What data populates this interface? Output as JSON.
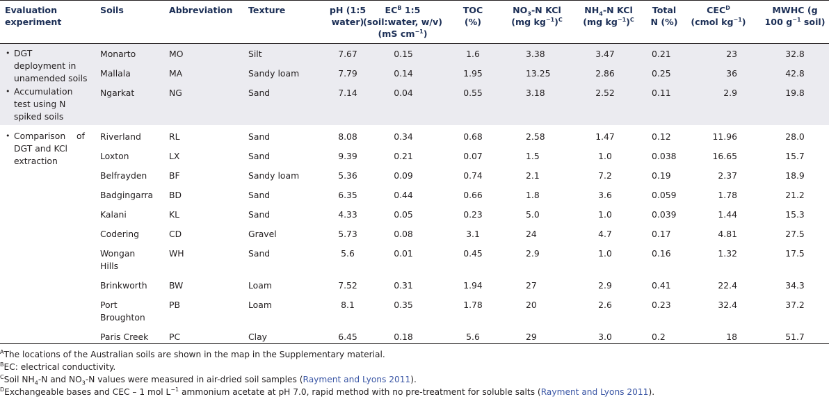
{
  "headers": {
    "eval": [
      "Evaluation",
      "experiment"
    ],
    "soils": "Soils",
    "abbr": "Abbreviation",
    "texture": "Texture",
    "ph": [
      "pH (1:5",
      "water)"
    ],
    "ec": {
      "l1a": "EC",
      "l1sup": "B",
      "l1b": " 1:5",
      "l2": "(soil:water, w/v)",
      "l3a": "(mS cm",
      "l3sup": "−1",
      "l3b": ")"
    },
    "toc": [
      "TOC",
      "(%)"
    ],
    "no3": {
      "l1a": "NO",
      "l1sub": "3",
      "l1b": "-N KCl",
      "l2a": "(mg kg",
      "l2sup": "−1",
      "l2b": ")",
      "l2sup2": "C"
    },
    "nh4": {
      "l1a": "NH",
      "l1sub": "4",
      "l1b": "-N KCl",
      "l2a": "(mg kg",
      "l2sup": "−1",
      "l2b": ")",
      "l2sup2": "C"
    },
    "totaln": [
      "Total",
      "N (%)"
    ],
    "cec": {
      "l1a": "CEC",
      "l1sup": "D",
      "l2a": "(cmol  kg",
      "l2sup": "−1",
      "l2b": ")"
    },
    "mwhc": {
      "l1": "MWHC (g",
      "l2a": "100 g",
      "l2sup": "−1",
      "l2b": " soil)"
    }
  },
  "group1": {
    "bullet": "•",
    "items": [
      [
        "DGT",
        "deployment in",
        "unamended soils"
      ],
      [
        "Accumulation",
        "test using N",
        "spiked soils"
      ]
    ]
  },
  "group2": {
    "bullet": "•",
    "items": [
      [
        "Comparison    of",
        "DGT and KCl",
        "extraction"
      ]
    ]
  },
  "rows": [
    {
      "soil": [
        "Monarto"
      ],
      "abbr": "MO",
      "texture": "Silt",
      "ph": "7.67",
      "ec": "0.15",
      "toc": "1.6",
      "no3": "3.38",
      "nh4": "3.47",
      "totaln": "0.21",
      "cec": "23",
      "mwhc": "32.8"
    },
    {
      "soil": [
        "Mallala"
      ],
      "abbr": "MA",
      "texture": "Sandy loam",
      "ph": "7.79",
      "ec": "0.14",
      "toc": "1.95",
      "no3": "13.25",
      "nh4": "2.86",
      "totaln": "0.25",
      "cec": "36",
      "mwhc": "42.8"
    },
    {
      "soil": [
        "Ngarkat"
      ],
      "abbr": "NG",
      "texture": "Sand",
      "ph": "7.14",
      "ec": "0.04",
      "toc": "0.55",
      "no3": "3.18",
      "nh4": "2.52",
      "totaln": "0.11",
      "cec": "2.9",
      "mwhc": "19.8"
    },
    {
      "soil": [
        "Riverland"
      ],
      "abbr": "RL",
      "texture": "Sand",
      "ph": "8.08",
      "ec": "0.34",
      "toc": "0.68",
      "no3": "2.58",
      "nh4": "1.47",
      "totaln": "0.12",
      "cec": "11.96",
      "mwhc": "28.0"
    },
    {
      "soil": [
        "Loxton"
      ],
      "abbr": "LX",
      "texture": "Sand",
      "ph": "9.39",
      "ec": "0.21",
      "toc": "0.07",
      "no3": "1.5",
      "nh4": "1.0",
      "totaln": "0.038",
      "cec": "16.65",
      "mwhc": "15.7"
    },
    {
      "soil": [
        "Belfrayden"
      ],
      "abbr": "BF",
      "texture": "Sandy loam",
      "ph": "5.36",
      "ec": "0.09",
      "toc": "0.74",
      "no3": "2.1",
      "nh4": "7.2",
      "totaln": "0.19",
      "cec": "2.37",
      "mwhc": "18.9"
    },
    {
      "soil": [
        "Badgingarra"
      ],
      "abbr": "BD",
      "texture": "Sand",
      "ph": "6.35",
      "ec": "0.44",
      "toc": "0.66",
      "no3": "1.8",
      "nh4": "3.6",
      "totaln": "0.059",
      "cec": "1.78",
      "mwhc": "21.2"
    },
    {
      "soil": [
        "Kalani"
      ],
      "abbr": "KL",
      "texture": "Sand",
      "ph": "4.33",
      "ec": "0.05",
      "toc": "0.23",
      "no3": "5.0",
      "nh4": "1.0",
      "totaln": "0.039",
      "cec": "1.44",
      "mwhc": "15.3"
    },
    {
      "soil": [
        "Codering"
      ],
      "abbr": "CD",
      "texture": "Gravel",
      "ph": "5.73",
      "ec": "0.08",
      "toc": "3.1",
      "no3": "24",
      "nh4": "4.7",
      "totaln": "0.17",
      "cec": "4.81",
      "mwhc": "27.5"
    },
    {
      "soil": [
        "Wongan",
        "Hills"
      ],
      "abbr": "WH",
      "texture": "Sand",
      "ph": "5.6",
      "ec": "0.01",
      "toc": "0.45",
      "no3": "2.9",
      "nh4": "1.0",
      "totaln": "0.16",
      "cec": "1.32",
      "mwhc": "17.5"
    },
    {
      "soil": [
        "Brinkworth"
      ],
      "abbr": "BW",
      "texture": "Loam",
      "ph": "7.52",
      "ec": "0.31",
      "toc": "1.94",
      "no3": "27",
      "nh4": "2.9",
      "totaln": "0.41",
      "cec": "22.4",
      "mwhc": "34.3"
    },
    {
      "soil": [
        "Port",
        "Broughton"
      ],
      "abbr": "PB",
      "texture": "Loam",
      "ph": "8.1",
      "ec": "0.35",
      "toc": "1.78",
      "no3": "20",
      "nh4": "2.6",
      "totaln": "0.23",
      "cec": "32.4",
      "mwhc": "37.2"
    },
    {
      "soil": [
        "Paris Creek"
      ],
      "abbr": "PC",
      "texture": "Clay",
      "ph": "6.45",
      "ec": "0.18",
      "toc": "5.6",
      "no3": "29",
      "nh4": "3.0",
      "totaln": "0.2",
      "cec": "18",
      "mwhc": "51.7"
    }
  ],
  "footnotes": {
    "a": {
      "mark": "A",
      "text": "The locations of the Australian soils are shown in the map in the Supplementary material."
    },
    "b": {
      "mark": "B",
      "text": "EC: electrical conductivity."
    },
    "c": {
      "mark": "C",
      "t1": "Soil NH",
      "s1": "4",
      "t2": "-N and NO",
      "s2": "3",
      "t3": "-N values were measured in air-dried soil samples (",
      "link": "Rayment and Lyons 2011",
      "t4": ")."
    },
    "d": {
      "mark": "D",
      "t1": "Exchangeable bases and CEC – 1 mol L",
      "sup": "−1",
      "t2": " ammonium acetate at pH 7.0, rapid method with no pre-treatment for soluble salts (",
      "link": "Rayment and Lyons 2011",
      "t3": ")."
    }
  },
  "colors": {
    "band": "#ebebf0",
    "header_text": "#1c2f56",
    "link": "#3a56a5"
  }
}
